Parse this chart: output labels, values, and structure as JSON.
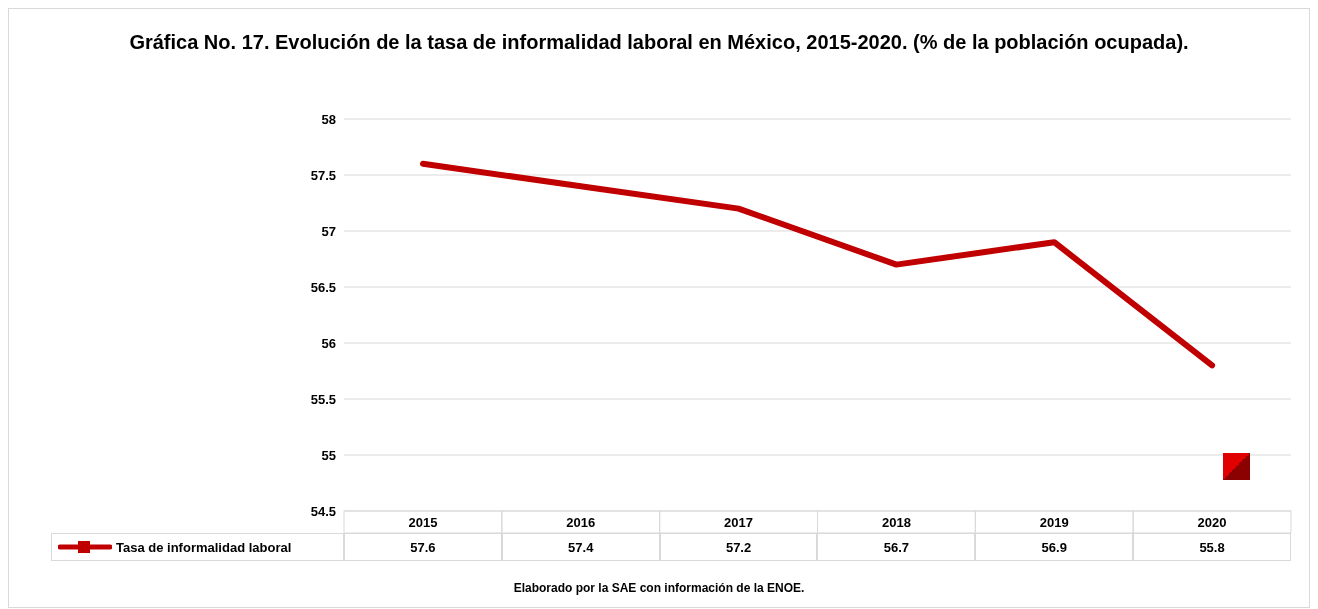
{
  "chart_data": {
    "type": "line",
    "title": "Gráfica No. 17. Evolución de la tasa de informalidad laboral en México, 2015-2020. (% de la población ocupada).",
    "categories": [
      "2015",
      "2016",
      "2017",
      "2018",
      "2019",
      "2020"
    ],
    "series": [
      {
        "name": "Tasa de informalidad laboral",
        "color": "#c00000",
        "values": [
          57.6,
          57.4,
          57.2,
          56.7,
          56.9,
          55.8
        ]
      }
    ],
    "ylim": [
      54.5,
      58
    ],
    "yticks": [
      54.5,
      55,
      55.5,
      56,
      56.5,
      57,
      57.5,
      58
    ],
    "grid": "y",
    "legend": "bottom",
    "data_labels": true,
    "marker": "none",
    "line_style": "solid",
    "annotations": [
      "Elaborado por la SAE con información de la ENOE."
    ]
  }
}
